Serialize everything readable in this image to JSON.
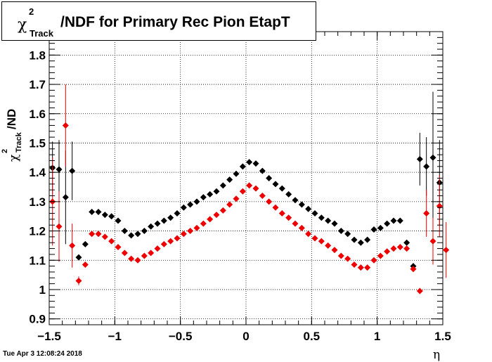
{
  "title": {
    "symbol": "χ",
    "superscript": "2",
    "subscript": "Track",
    "text": "/NDF for Primary Rec Pion EtapT"
  },
  "timestamp": "Tue Apr  3 12:08:24 2018",
  "chart_data": {
    "type": "scatter",
    "xlabel": "η",
    "ylabel": {
      "symbol": "χ",
      "superscript": "2",
      "subscript": "Track",
      "text": "/ND"
    },
    "xlim": [
      -1.5,
      1.5
    ],
    "ylim": [
      0.88,
      1.88
    ],
    "xticks": [
      -1.5,
      -1,
      -0.5,
      0,
      0.5,
      1,
      1.5
    ],
    "xtick_labels": [
      "−1.5",
      "−1",
      "−0.5",
      "0",
      "0.5",
      "1",
      "1.5"
    ],
    "yticks": [
      0.9,
      1,
      1.1,
      1.2,
      1.3,
      1.4,
      1.5,
      1.6,
      1.7,
      1.8
    ],
    "ytick_labels": [
      "0.9",
      "1",
      "1.1",
      "1.2",
      "1.3",
      "1.4",
      "1.5",
      "1.6",
      "1.7",
      "1.8"
    ],
    "grid": true,
    "series": [
      {
        "color": "#000000",
        "points": [
          {
            "x": -1.475,
            "y": 1.415,
            "err": 0.09
          },
          {
            "x": -1.425,
            "y": 1.41,
            "err": 0.1
          },
          {
            "x": -1.375,
            "y": 1.315,
            "err": 0.16
          },
          {
            "x": -1.325,
            "y": 1.405,
            "err": 0.1
          },
          {
            "x": -1.275,
            "y": 1.11,
            "err": 0.01
          },
          {
            "x": -1.225,
            "y": 1.155,
            "err": 0.005
          },
          {
            "x": -1.175,
            "y": 1.265,
            "err": 0.005
          },
          {
            "x": -1.125,
            "y": 1.265
          },
          {
            "x": -1.075,
            "y": 1.255
          },
          {
            "x": -1.025,
            "y": 1.25
          },
          {
            "x": -0.975,
            "y": 1.235
          },
          {
            "x": -0.925,
            "y": 1.2
          },
          {
            "x": -0.875,
            "y": 1.185
          },
          {
            "x": -0.825,
            "y": 1.19
          },
          {
            "x": -0.775,
            "y": 1.2
          },
          {
            "x": -0.725,
            "y": 1.215
          },
          {
            "x": -0.675,
            "y": 1.225
          },
          {
            "x": -0.625,
            "y": 1.235
          },
          {
            "x": -0.575,
            "y": 1.245
          },
          {
            "x": -0.525,
            "y": 1.26
          },
          {
            "x": -0.475,
            "y": 1.28
          },
          {
            "x": -0.425,
            "y": 1.29
          },
          {
            "x": -0.375,
            "y": 1.3
          },
          {
            "x": -0.325,
            "y": 1.315
          },
          {
            "x": -0.275,
            "y": 1.325
          },
          {
            "x": -0.225,
            "y": 1.335
          },
          {
            "x": -0.175,
            "y": 1.355
          },
          {
            "x": -0.125,
            "y": 1.375
          },
          {
            "x": -0.075,
            "y": 1.395
          },
          {
            "x": -0.025,
            "y": 1.42
          },
          {
            "x": 0.025,
            "y": 1.435
          },
          {
            "x": 0.075,
            "y": 1.43
          },
          {
            "x": 0.125,
            "y": 1.405
          },
          {
            "x": 0.175,
            "y": 1.38
          },
          {
            "x": 0.225,
            "y": 1.36
          },
          {
            "x": 0.275,
            "y": 1.345
          },
          {
            "x": 0.325,
            "y": 1.325
          },
          {
            "x": 0.375,
            "y": 1.305
          },
          {
            "x": 0.425,
            "y": 1.29
          },
          {
            "x": 0.475,
            "y": 1.275
          },
          {
            "x": 0.525,
            "y": 1.26
          },
          {
            "x": 0.575,
            "y": 1.245
          },
          {
            "x": 0.625,
            "y": 1.235
          },
          {
            "x": 0.675,
            "y": 1.225
          },
          {
            "x": 0.725,
            "y": 1.2
          },
          {
            "x": 0.775,
            "y": 1.19
          },
          {
            "x": 0.825,
            "y": 1.17
          },
          {
            "x": 0.875,
            "y": 1.16
          },
          {
            "x": 0.925,
            "y": 1.17
          },
          {
            "x": 0.975,
            "y": 1.205
          },
          {
            "x": 1.025,
            "y": 1.21
          },
          {
            "x": 1.075,
            "y": 1.225
          },
          {
            "x": 1.125,
            "y": 1.235
          },
          {
            "x": 1.175,
            "y": 1.235
          },
          {
            "x": 1.225,
            "y": 1.16,
            "err": 0.005
          },
          {
            "x": 1.275,
            "y": 1.08,
            "err": 0.01
          },
          {
            "x": 1.325,
            "y": 1.445,
            "err": 0.09
          },
          {
            "x": 1.375,
            "y": 1.42,
            "err": 0.1
          },
          {
            "x": 1.425,
            "y": 1.45,
            "err": 0.225
          },
          {
            "x": 1.475,
            "y": 1.365,
            "err": 0.145
          }
        ]
      },
      {
        "color": "#ee0000",
        "points": [
          {
            "x": -1.475,
            "y": 1.3,
            "err": 0.15
          },
          {
            "x": -1.425,
            "y": 1.215,
            "err": 0.12
          },
          {
            "x": -1.375,
            "y": 1.56,
            "err": 0.14
          },
          {
            "x": -1.325,
            "y": 1.15,
            "err": 0.075
          },
          {
            "x": -1.275,
            "y": 1.03,
            "err": 0.015
          },
          {
            "x": -1.225,
            "y": 1.085,
            "err": 0.005
          },
          {
            "x": -1.175,
            "y": 1.19
          },
          {
            "x": -1.125,
            "y": 1.19
          },
          {
            "x": -1.075,
            "y": 1.18
          },
          {
            "x": -1.025,
            "y": 1.165
          },
          {
            "x": -0.975,
            "y": 1.145
          },
          {
            "x": -0.925,
            "y": 1.125
          },
          {
            "x": -0.875,
            "y": 1.105
          },
          {
            "x": -0.825,
            "y": 1.1
          },
          {
            "x": -0.775,
            "y": 1.115
          },
          {
            "x": -0.725,
            "y": 1.125
          },
          {
            "x": -0.675,
            "y": 1.14
          },
          {
            "x": -0.625,
            "y": 1.155
          },
          {
            "x": -0.575,
            "y": 1.165
          },
          {
            "x": -0.525,
            "y": 1.175
          },
          {
            "x": -0.475,
            "y": 1.19
          },
          {
            "x": -0.425,
            "y": 1.2
          },
          {
            "x": -0.375,
            "y": 1.21
          },
          {
            "x": -0.325,
            "y": 1.225
          },
          {
            "x": -0.275,
            "y": 1.24
          },
          {
            "x": -0.225,
            "y": 1.255
          },
          {
            "x": -0.175,
            "y": 1.27
          },
          {
            "x": -0.125,
            "y": 1.29
          },
          {
            "x": -0.075,
            "y": 1.31
          },
          {
            "x": -0.025,
            "y": 1.335
          },
          {
            "x": 0.025,
            "y": 1.355
          },
          {
            "x": 0.075,
            "y": 1.345
          },
          {
            "x": 0.125,
            "y": 1.32
          },
          {
            "x": 0.175,
            "y": 1.3
          },
          {
            "x": 0.225,
            "y": 1.28
          },
          {
            "x": 0.275,
            "y": 1.26
          },
          {
            "x": 0.325,
            "y": 1.245
          },
          {
            "x": 0.375,
            "y": 1.225
          },
          {
            "x": 0.425,
            "y": 1.21
          },
          {
            "x": 0.475,
            "y": 1.19
          },
          {
            "x": 0.525,
            "y": 1.175
          },
          {
            "x": 0.575,
            "y": 1.165
          },
          {
            "x": 0.625,
            "y": 1.15
          },
          {
            "x": 0.675,
            "y": 1.135
          },
          {
            "x": 0.725,
            "y": 1.115
          },
          {
            "x": 0.775,
            "y": 1.105
          },
          {
            "x": 0.825,
            "y": 1.085
          },
          {
            "x": 0.875,
            "y": 1.075
          },
          {
            "x": 0.925,
            "y": 1.075
          },
          {
            "x": 0.975,
            "y": 1.1
          },
          {
            "x": 1.025,
            "y": 1.115
          },
          {
            "x": 1.075,
            "y": 1.13
          },
          {
            "x": 1.125,
            "y": 1.14
          },
          {
            "x": 1.175,
            "y": 1.145
          },
          {
            "x": 1.225,
            "y": 1.14
          },
          {
            "x": 1.275,
            "y": 1.07,
            "err": 0.005
          },
          {
            "x": 1.325,
            "y": 0.995,
            "err": 0.01
          },
          {
            "x": 1.375,
            "y": 1.26,
            "err": 0.08
          },
          {
            "x": 1.425,
            "y": 1.165,
            "err": 0.08
          },
          {
            "x": 1.475,
            "y": 1.285,
            "err": 0.105
          },
          {
            "x": 1.525,
            "y": 1.135,
            "err": 0.095
          }
        ]
      }
    ]
  }
}
